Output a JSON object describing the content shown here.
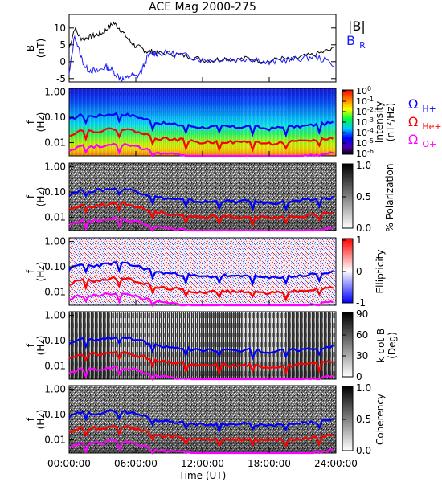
{
  "title": "ACE Mag 2000-275",
  "xlabel": "Time (UT)",
  "x_ticks": [
    "00:00:00",
    "06:00:00",
    "12:00:00",
    "18:00:00",
    "24:00:00"
  ],
  "legend": {
    "b_total": "|B|",
    "b_r": "B",
    "b_r_sub": "R",
    "h_sym": "Ω",
    "h_sub": "H+",
    "he_sym": "Ω",
    "he_sub": "He+",
    "o_sym": "Ω",
    "o_sub": "O+"
  },
  "colors": {
    "b_total": "#000000",
    "b_r": "#1a1aff",
    "h_gyro": "#0000ff",
    "he_gyro": "#ff0000",
    "o_gyro": "#ff00ff"
  },
  "panels": {
    "b_field": {
      "ylabel_1": "B",
      "ylabel_2": "(nT)",
      "y_ticks": [
        "-5",
        "0",
        "5",
        "10"
      ]
    },
    "intensity": {
      "ylabel_1": "f",
      "ylabel_2": "(Hz)",
      "y_ticks": [
        "1.00",
        "0.10",
        "0.01"
      ],
      "cbar_title_1": "Intensity",
      "cbar_title_2": "(nT²/Hz)",
      "cbar_ticks": [
        {
          "base": "10",
          "exp": "0"
        },
        {
          "base": "10",
          "exp": "-1"
        },
        {
          "base": "10",
          "exp": "-2"
        },
        {
          "base": "10",
          "exp": "-3"
        },
        {
          "base": "10",
          "exp": "-4"
        },
        {
          "base": "10",
          "exp": "-5"
        },
        {
          "base": "10",
          "exp": "-6"
        }
      ]
    },
    "polarization": {
      "ylabel_1": "f",
      "ylabel_2": "(Hz)",
      "y_ticks": [
        "1.00",
        "0.10",
        "0.01"
      ],
      "cbar_title": "% Polarization",
      "cbar_ticks": [
        "1.0",
        "0.5",
        "0.0"
      ]
    },
    "ellipticity": {
      "ylabel_1": "f",
      "ylabel_2": "(Hz)",
      "y_ticks": [
        "1.00",
        "0.10",
        "0.01"
      ],
      "cbar_title": "Ellipticity",
      "cbar_ticks": [
        "1",
        "0",
        "-1"
      ]
    },
    "kdotb": {
      "ylabel_1": "f",
      "ylabel_2": "(Hz)",
      "y_ticks": [
        "1.00",
        "0.10",
        "0.01"
      ],
      "cbar_title_1": "k dot B",
      "cbar_title_2": "(Deg)",
      "cbar_ticks": [
        "90",
        "60",
        "30",
        "0"
      ]
    },
    "coherency": {
      "ylabel_1": "f",
      "ylabel_2": "(Hz)",
      "y_ticks": [
        "1.00",
        "0.10",
        "0.01"
      ],
      "cbar_title": "Coherency",
      "cbar_ticks": [
        "1.0",
        "0.5",
        "0.0"
      ]
    }
  },
  "chart_data": {
    "type": "line",
    "title": "ACE Mag 2000-275",
    "xlabel": "Time (UT)",
    "x_range_hours": [
      0,
      24
    ],
    "b_field": {
      "ylabel": "B (nT)",
      "ylim": [
        -6,
        14
      ],
      "series": [
        {
          "name": "|B|",
          "x": [
            0,
            0.5,
            1,
            1.5,
            2,
            2.5,
            3,
            3.5,
            4,
            4.5,
            5,
            5.5,
            6,
            6.5,
            7,
            7.5,
            8,
            9,
            10,
            11,
            12,
            13,
            14,
            15,
            16,
            17,
            18,
            19,
            20,
            21,
            22,
            23,
            24
          ],
          "y": [
            4,
            10,
            7,
            7,
            7.5,
            8,
            8.5,
            10,
            11.5,
            10,
            8,
            6,
            4.5,
            4,
            3,
            3,
            2.5,
            2.5,
            2,
            1.5,
            0.5,
            0.5,
            1,
            0.5,
            1,
            0.5,
            0,
            1,
            0.5,
            1.5,
            2,
            3,
            4
          ]
        },
        {
          "name": "B_R",
          "x": [
            0,
            0.5,
            1,
            1.5,
            2,
            2.5,
            3,
            3.5,
            4,
            4.5,
            5,
            5.5,
            6,
            6.5,
            7,
            7.5,
            8,
            9,
            10,
            11,
            12,
            13,
            14,
            15,
            16,
            17,
            18,
            19,
            20,
            21,
            22,
            23,
            24
          ],
          "y": [
            -4,
            8,
            2,
            -2,
            -2.5,
            -3,
            -2,
            -1.5,
            -3,
            -4.5,
            -5.5,
            -4,
            -4.5,
            -3,
            1,
            2.5,
            2.5,
            2.5,
            2,
            1.5,
            0.5,
            0.5,
            1,
            0.5,
            1,
            0.5,
            -0.5,
            0.5,
            0.5,
            1,
            1.5,
            0.5,
            -1
          ]
        }
      ]
    },
    "gyrofrequencies_hz": {
      "ylim": [
        0.003,
        1.4
      ],
      "log_y": true,
      "x": [
        0,
        1,
        2,
        3,
        4,
        5,
        6,
        7,
        8,
        9,
        10,
        11,
        12,
        13,
        14,
        15,
        16,
        17,
        18,
        19,
        20,
        21,
        22,
        23,
        24
      ],
      "series": [
        {
          "name": "Ω H+",
          "values": [
            0.08,
            0.12,
            0.11,
            0.12,
            0.14,
            0.13,
            0.11,
            0.08,
            0.06,
            0.055,
            0.05,
            0.045,
            0.04,
            0.042,
            0.045,
            0.04,
            0.045,
            0.04,
            0.035,
            0.04,
            0.042,
            0.045,
            0.05,
            0.055,
            0.065
          ]
        },
        {
          "name": "Ω He+",
          "values": [
            0.02,
            0.03,
            0.028,
            0.03,
            0.035,
            0.033,
            0.028,
            0.02,
            0.015,
            0.014,
            0.013,
            0.011,
            0.01,
            0.0105,
            0.011,
            0.01,
            0.011,
            0.01,
            0.009,
            0.01,
            0.0105,
            0.011,
            0.0125,
            0.014,
            0.016
          ]
        },
        {
          "name": "Ω O+",
          "values": [
            0.005,
            0.0075,
            0.007,
            0.0075,
            0.009,
            0.008,
            0.007,
            0.005,
            0.004,
            0.0035,
            0.0033,
            0.0028,
            0.0025,
            0.0026,
            0.0028,
            0.0025,
            0.0028,
            0.0025,
            0.0023,
            0.0025,
            0.0026,
            0.0028,
            0.0031,
            0.0035,
            0.004
          ]
        }
      ]
    },
    "spectrogram_panels": [
      {
        "name": "Intensity",
        "unit": "nT²/Hz",
        "colorbar": "rainbow",
        "range": [
          "10^-6",
          "10^0"
        ]
      },
      {
        "name": "% Polarization",
        "colorbar": "grayscale",
        "range": [
          0.0,
          1.0
        ]
      },
      {
        "name": "Ellipticity",
        "colorbar": "blue-white-red",
        "range": [
          -1,
          1
        ]
      },
      {
        "name": "k dot B",
        "unit": "Deg",
        "colorbar": "grayscale",
        "range": [
          0,
          90
        ]
      },
      {
        "name": "Coherency",
        "colorbar": "grayscale",
        "range": [
          0.0,
          1.0
        ]
      }
    ]
  }
}
